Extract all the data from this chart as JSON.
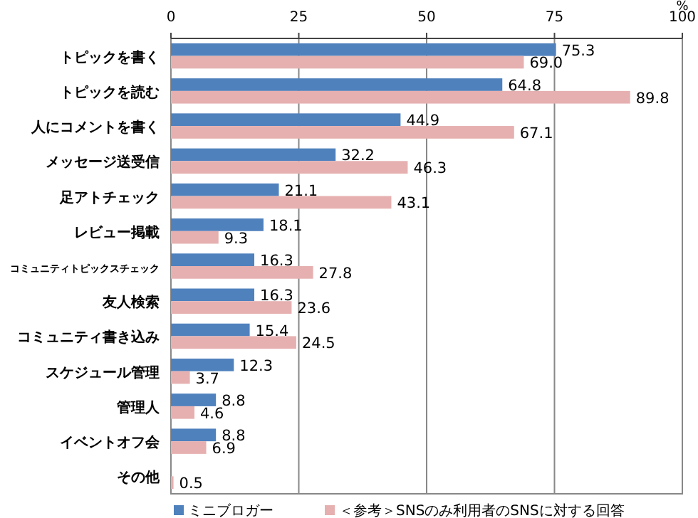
{
  "chart_data": {
    "type": "bar",
    "orientation": "horizontal",
    "xlabel": "%",
    "categories": [
      "トピックを書く",
      "トピックを読む",
      "人にコメントを書く",
      "メッセージ送受信",
      "足アトチェック",
      "レビュー掲載",
      "コミュニティトピックスチェック",
      "友人検索",
      "コミュニティ書き込み",
      "スケジュール管理",
      "管理人",
      "イベントオフ会",
      "その他"
    ],
    "series": [
      {
        "name": "ミニブロガー",
        "color": "#4f81bd",
        "values": [
          75.3,
          64.8,
          44.9,
          32.2,
          21.1,
          18.1,
          16.3,
          16.3,
          15.4,
          12.3,
          8.8,
          8.8,
          null
        ],
        "value_labels": [
          "75.3",
          "64.8",
          "44.9",
          "32.2",
          "21.1",
          "18.1",
          "16.3",
          "16.3",
          "15.4",
          "12.3",
          "8.8",
          "8.8",
          null
        ]
      },
      {
        "name": "＜参考＞SNSのみ利用者のSNSに対する回答",
        "color": "#e6b0b0",
        "values": [
          69.0,
          89.8,
          67.1,
          46.3,
          43.1,
          9.3,
          27.8,
          23.6,
          24.5,
          3.7,
          4.6,
          6.9,
          0.5
        ],
        "value_labels": [
          "69.0",
          "89.8",
          "67.1",
          "46.3",
          "43.1",
          "9.3",
          "27.8",
          "23.6",
          "24.5",
          "3.7",
          "4.6",
          "6.9",
          "0.5"
        ]
      }
    ],
    "xlim": [
      0,
      100
    ],
    "xticks": [
      0,
      25,
      50,
      75,
      100
    ],
    "grid": "x",
    "legend": "bottom"
  }
}
